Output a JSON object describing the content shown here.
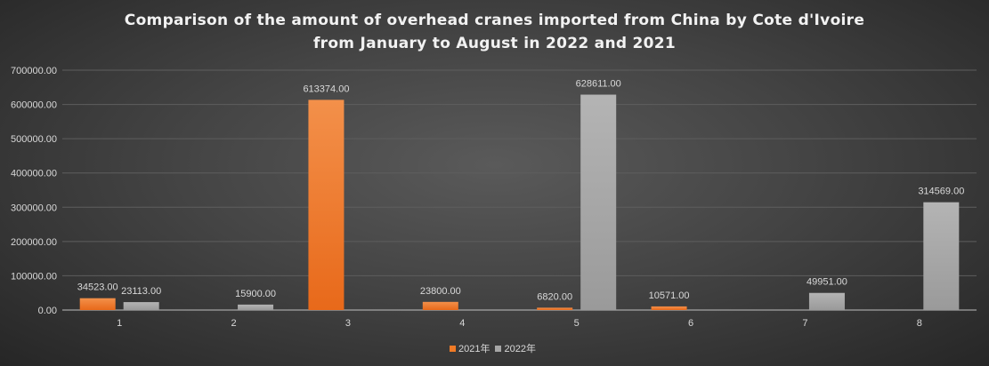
{
  "chart_data": {
    "type": "bar",
    "title_lines": [
      "Comparison of the amount of overhead cranes imported from China by Cote d'Ivoire",
      "from January to August in 2022 and 2021"
    ],
    "categories": [
      "1",
      "2",
      "3",
      "4",
      "5",
      "6",
      "7",
      "8"
    ],
    "series": [
      {
        "name": "2021年",
        "color": "#f07a26",
        "values": [
          34523,
          0,
          613374,
          23800,
          6820,
          10571,
          0,
          0
        ]
      },
      {
        "name": "2022年",
        "color": "#a6a6a6",
        "values": [
          23113,
          15900,
          0,
          0,
          628611,
          0,
          49951,
          314569
        ]
      }
    ],
    "ylim": [
      0,
      700000
    ],
    "yticks": [
      0,
      100000,
      200000,
      300000,
      400000,
      500000,
      600000,
      700000
    ],
    "grid": true,
    "legend": "bottom",
    "xlabel": "",
    "ylabel": ""
  }
}
